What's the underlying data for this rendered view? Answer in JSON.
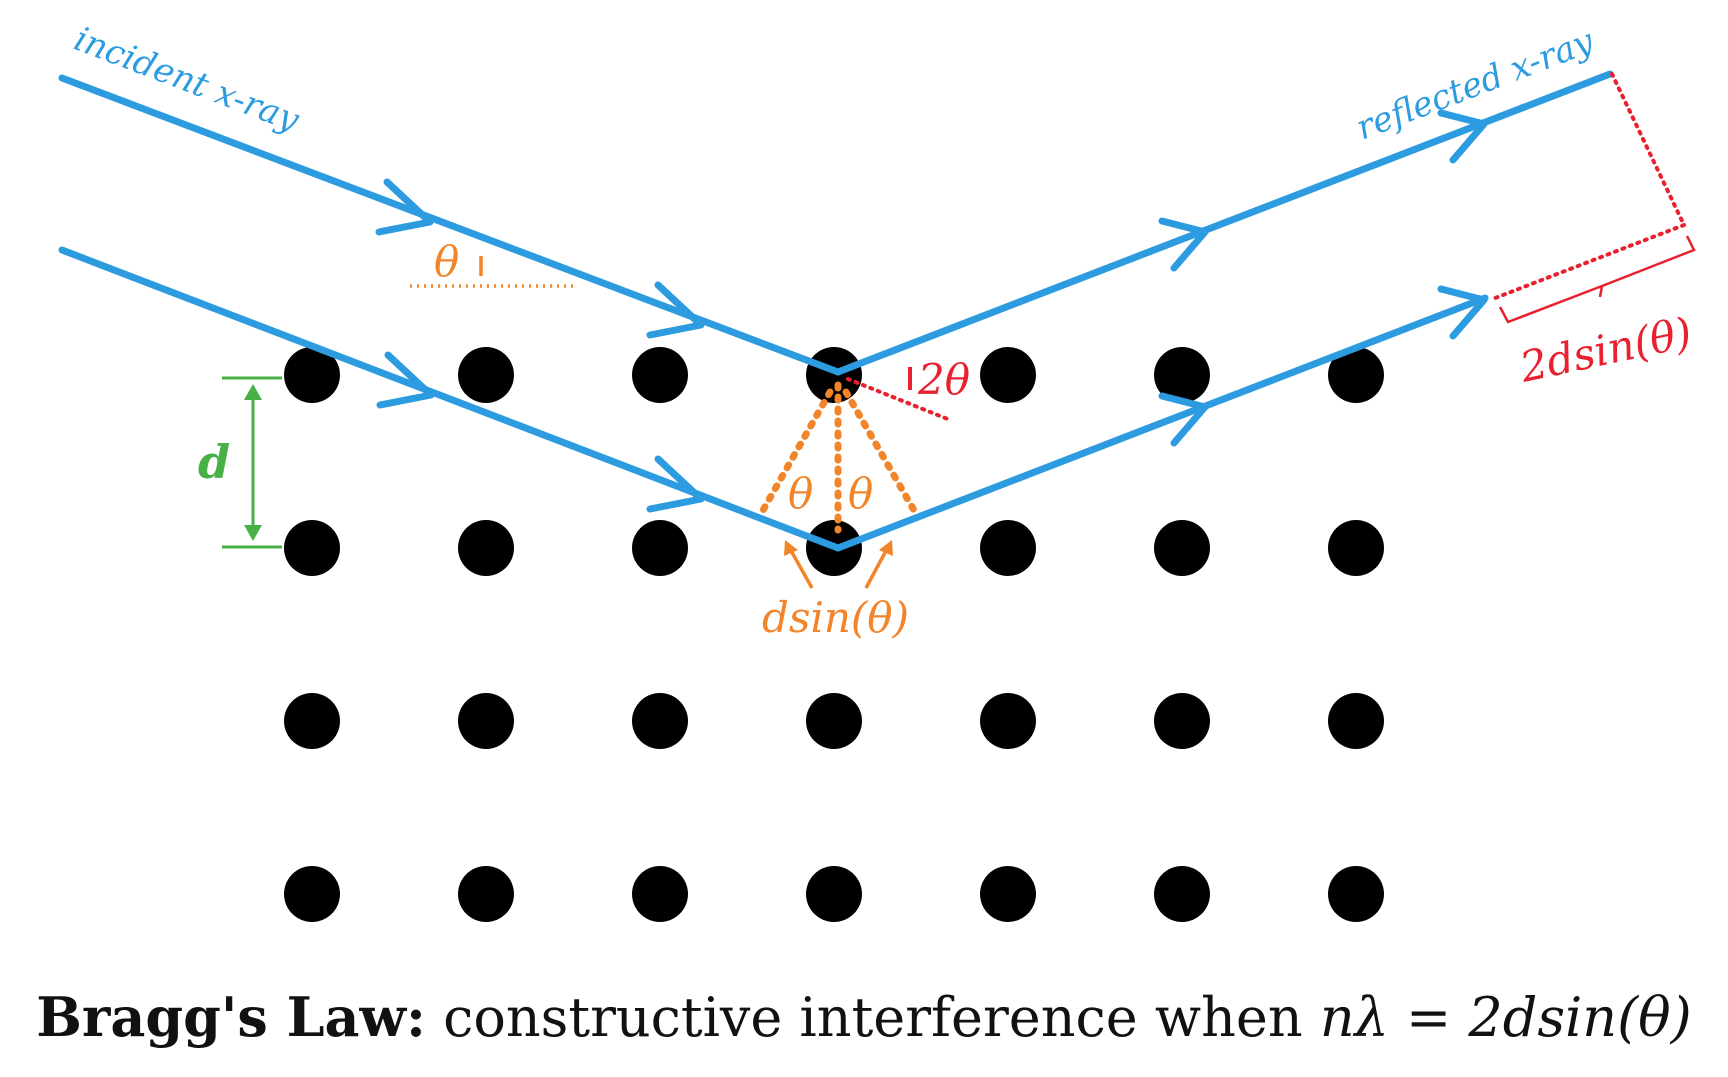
{
  "labels": {
    "incident": "incident x-ray",
    "reflected": "reflected x-ray",
    "theta": "θ",
    "two_theta": "2θ",
    "theta_left": "θ",
    "theta_right": "θ",
    "d": "d",
    "dsin": "dsin(θ)",
    "two_dsin": "2dsin(θ)"
  },
  "caption": {
    "title": "Bragg's Law:",
    "text": "constructive interference when",
    "equation": "nλ = 2dsin(θ)"
  },
  "lattice": {
    "rows": 4,
    "columns": 7
  },
  "colors": {
    "ray": "#2d9be0",
    "atom": "#000000",
    "angle_construction": "#f2842a",
    "path_difference": "#e8202f",
    "spacing": "#48b046"
  }
}
